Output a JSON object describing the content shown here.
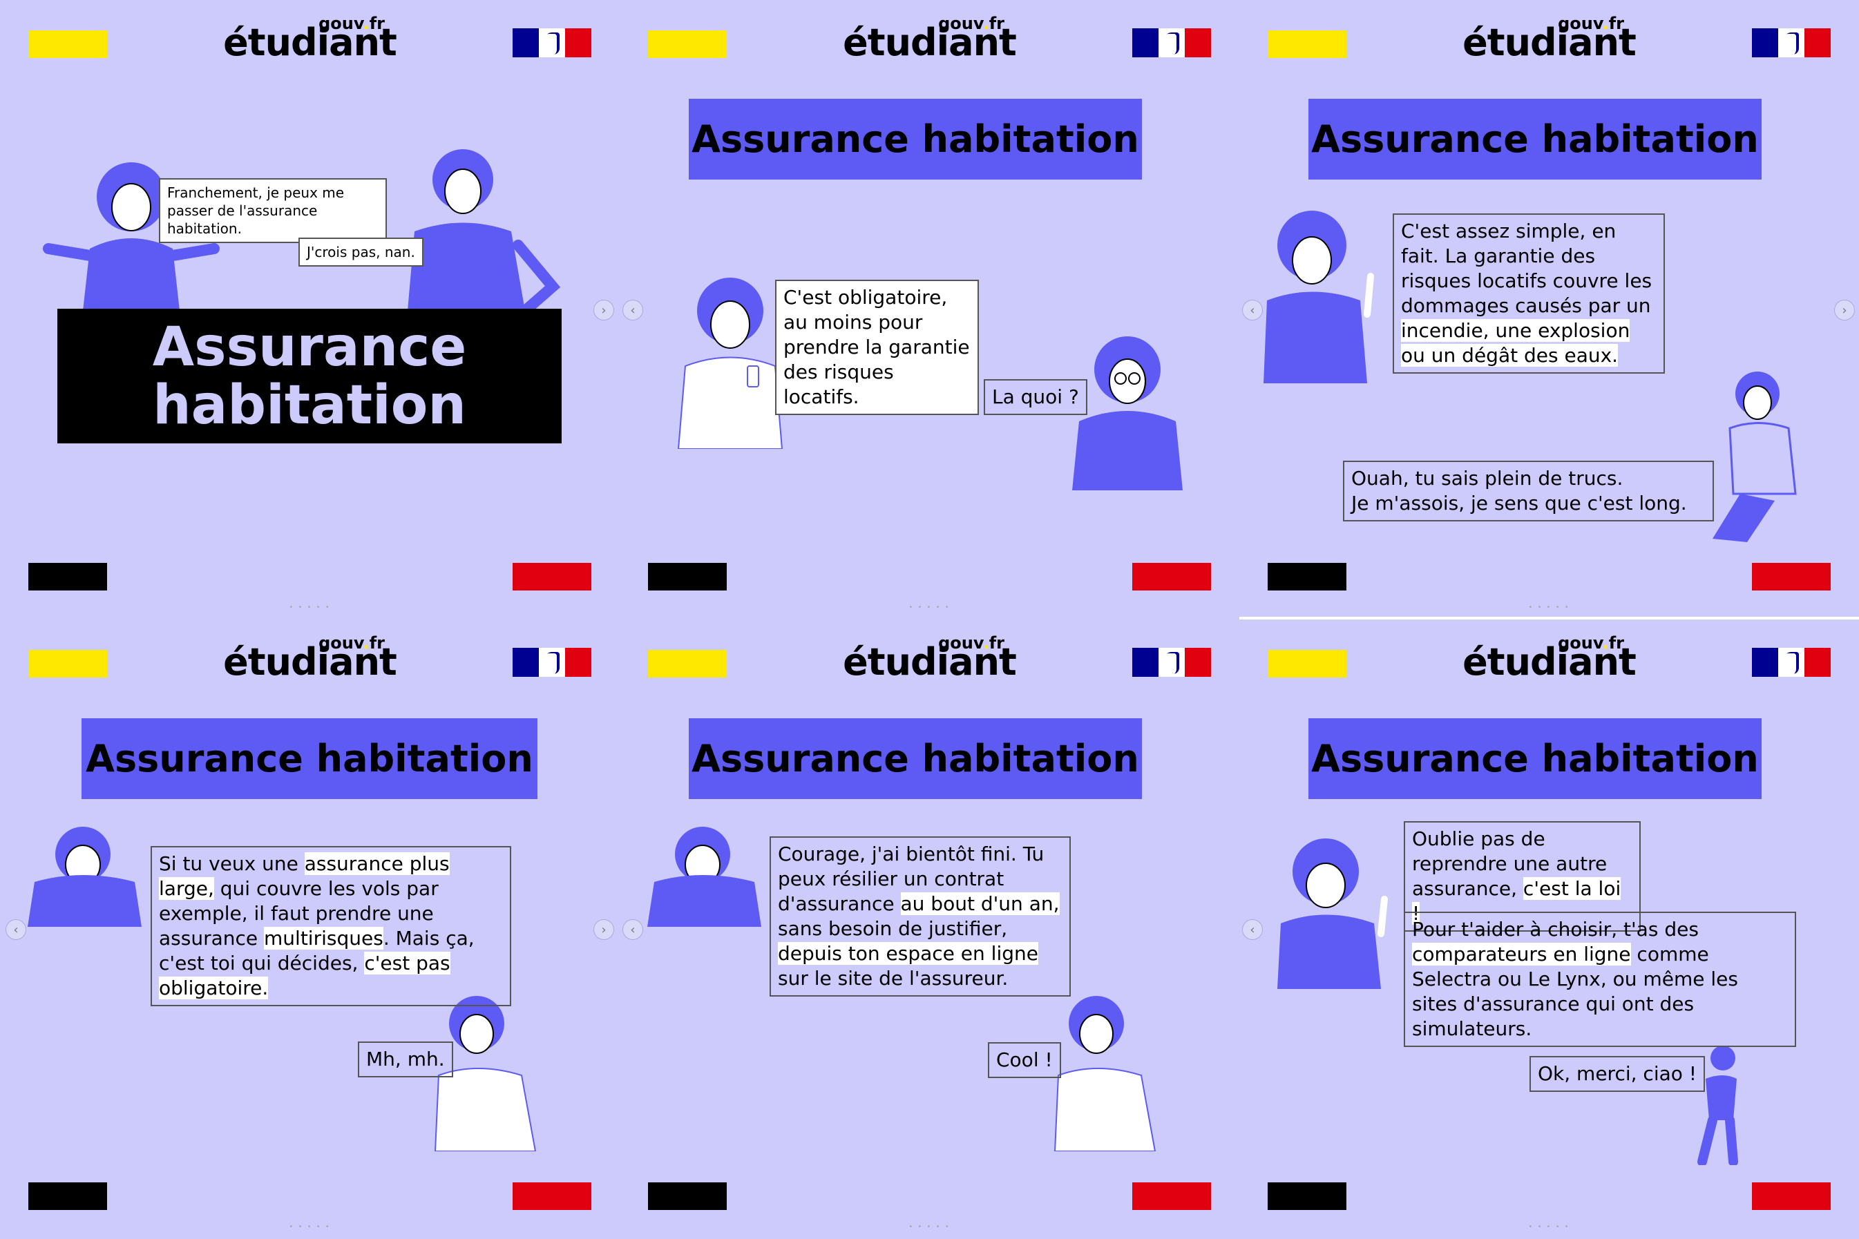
{
  "brand": {
    "name": "étudiant",
    "suffix_gouv": "gouv",
    "suffix_dot": ".",
    "suffix_fr": "fr",
    "colors": {
      "background": "#cccbfb",
      "accent": "#5d5bf3",
      "yellow": "#ffe800",
      "red": "#e1000f",
      "blue": "#000091",
      "black": "#000000"
    }
  },
  "title": "Assurance habitation",
  "slides": [
    {
      "big_title_line1": "Assurance",
      "big_title_line2": "habitation",
      "bubble_a": "Franchement, je peux me passer de l'assurance habitation.",
      "bubble_b": "J'crois pas, nan."
    },
    {
      "bubble_a_hl": "C'est obligatoire",
      "bubble_a_rest": ", au moins pour prendre la garantie des risques locatifs.",
      "bubble_b": "La quoi ?"
    },
    {
      "bubble_a_1": "C'est assez simple, en fait. La garantie des risques locatifs couvre les dommages causés par un ",
      "bubble_a_hl": "incendie, une explosion ou un dégât des eaux.",
      "bubble_b_line1": "Ouah, tu sais plein de trucs.",
      "bubble_b_line2": "Je m'assois, je sens que c'est long."
    },
    {
      "bubble_a_1": "Si tu veux une ",
      "bubble_a_hl1": "assurance plus large,",
      "bubble_a_2": " qui couvre les vols par exemple, il faut prendre une assurance ",
      "bubble_a_hl2": "multirisques",
      "bubble_a_3": ". Mais ça, c'est toi qui décides, ",
      "bubble_a_hl3": "c'est pas obligatoire.",
      "bubble_b": "Mh, mh."
    },
    {
      "bubble_a_1": "Courage, j'ai bientôt fini. Tu peux résilier un contrat d'assurance ",
      "bubble_a_hl1": "au bout d'un an,",
      "bubble_a_2": " sans besoin de justifier, ",
      "bubble_a_hl2": "depuis ton espace en ligne",
      "bubble_a_3": " sur le site de l'assureur.",
      "bubble_b": "Cool !"
    },
    {
      "bubble_a_1": "Oublie pas de reprendre une autre assurance, ",
      "bubble_a_hl": "c'est la loi !",
      "bubble_b_1": "Pour t'aider à choisir, t'as des ",
      "bubble_b_hl": "comparateurs en ligne",
      "bubble_b_2": " comme Selectra ou Le Lynx, ou même les sites d'assurance qui ont des simulateurs.",
      "bubble_c": "Ok, merci, ciao !"
    }
  ],
  "nav": {
    "prev_glyph": "‹",
    "next_glyph": "›",
    "pager": "• • • • •"
  }
}
